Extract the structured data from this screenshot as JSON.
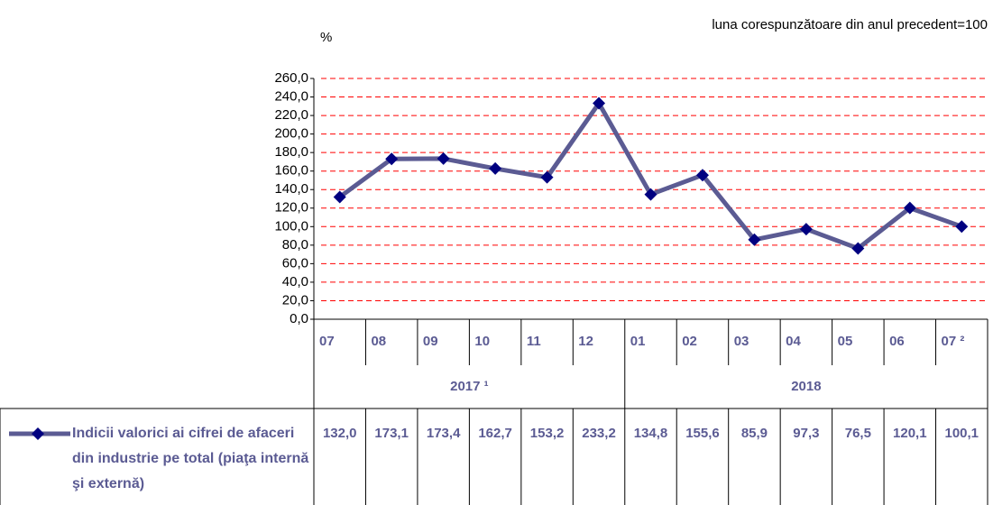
{
  "chart_data": {
    "type": "line",
    "y_label": "%",
    "note": "luna corespunzătoare din anul precedent=100",
    "categories": [
      "07",
      "08",
      "09",
      "10",
      "11",
      "12",
      "01",
      "02",
      "03",
      "04",
      "05",
      "06",
      "07 ²"
    ],
    "groups": [
      {
        "label": "2017 ¹",
        "span": 6
      },
      {
        "label": "2018",
        "span": 7
      }
    ],
    "series": [
      {
        "name": "Indicii valorici ai cifrei de afaceri din industrie pe total (piaţa internă şi externă)",
        "color": "#5b5b93",
        "marker_color": "#000080",
        "values": [
          132.0,
          173.1,
          173.4,
          162.7,
          153.2,
          233.2,
          134.8,
          155.6,
          85.9,
          97.3,
          76.5,
          120.1,
          100.1
        ],
        "value_labels": [
          "132,0",
          "173,1",
          "173,4",
          "162,7",
          "153,2",
          "233,2",
          "134,8",
          "155,6",
          "85,9",
          "97,3",
          "76,5",
          "120,1",
          "100,1"
        ]
      }
    ],
    "ylim": [
      0,
      260
    ],
    "yticks": [
      {
        "value": 0,
        "label": "0,0"
      },
      {
        "value": 20,
        "label": "20,0"
      },
      {
        "value": 40,
        "label": "40,0"
      },
      {
        "value": 60,
        "label": "60,0"
      },
      {
        "value": 80,
        "label": "80,0"
      },
      {
        "value": 100,
        "label": "100,0"
      },
      {
        "value": 120,
        "label": "120,0"
      },
      {
        "value": 140,
        "label": "140,0"
      },
      {
        "value": 160,
        "label": "160,0"
      },
      {
        "value": 180,
        "label": "180,0"
      },
      {
        "value": 200,
        "label": "200,0"
      },
      {
        "value": 220,
        "label": "220,0"
      },
      {
        "value": 240,
        "label": "240,0"
      },
      {
        "value": 260,
        "label": "260,0"
      }
    ],
    "grid": true,
    "grid_color": "#ff0000"
  }
}
